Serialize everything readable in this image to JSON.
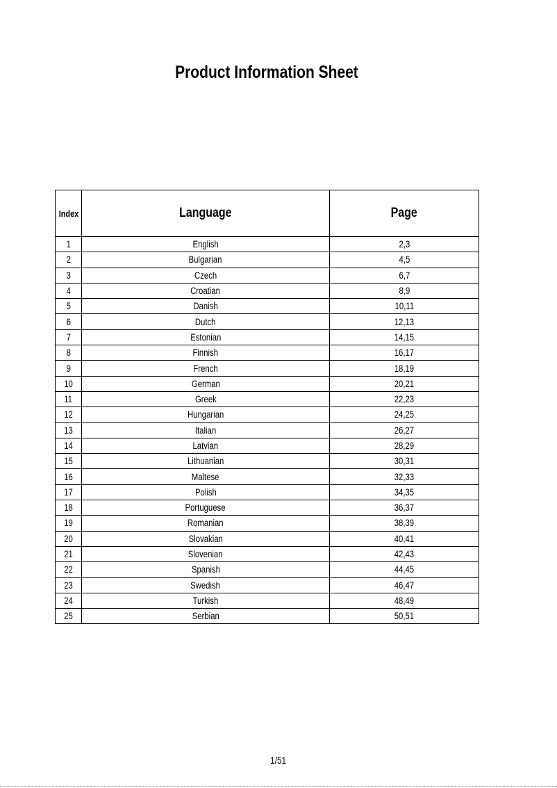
{
  "title": "Product Information Sheet",
  "table": {
    "headers": {
      "index": "Index",
      "language": "Language",
      "page": "Page"
    },
    "rows": [
      {
        "index": "1",
        "language": "English",
        "page": "2,3"
      },
      {
        "index": "2",
        "language": "Bulgarian",
        "page": "4,5"
      },
      {
        "index": "3",
        "language": "Czech",
        "page": "6,7"
      },
      {
        "index": "4",
        "language": "Croatian",
        "page": "8,9"
      },
      {
        "index": "5",
        "language": "Danish",
        "page": "10,11"
      },
      {
        "index": "6",
        "language": "Dutch",
        "page": "12,13"
      },
      {
        "index": "7",
        "language": "Estonian",
        "page": "14,15"
      },
      {
        "index": "8",
        "language": "Finnish",
        "page": "16,17"
      },
      {
        "index": "9",
        "language": "French",
        "page": "18,19"
      },
      {
        "index": "10",
        "language": "German",
        "page": "20,21"
      },
      {
        "index": "11",
        "language": "Greek",
        "page": "22,23"
      },
      {
        "index": "12",
        "language": "Hungarian",
        "page": "24,25"
      },
      {
        "index": "13",
        "language": "Italian",
        "page": "26,27"
      },
      {
        "index": "14",
        "language": "Latvian",
        "page": "28,29"
      },
      {
        "index": "15",
        "language": "Lithuanian",
        "page": "30,31"
      },
      {
        "index": "16",
        "language": "Maltese",
        "page": "32,33"
      },
      {
        "index": "17",
        "language": "Polish",
        "page": "34,35"
      },
      {
        "index": "18",
        "language": "Portuguese",
        "page": "36,37"
      },
      {
        "index": "19",
        "language": "Romanian",
        "page": "38,39"
      },
      {
        "index": "20",
        "language": "Slovakian",
        "page": "40,41"
      },
      {
        "index": "21",
        "language": "Slovenian",
        "page": "42,43"
      },
      {
        "index": "22",
        "language": "Spanish",
        "page": "44,45"
      },
      {
        "index": "23",
        "language": "Swedish",
        "page": "46,47"
      },
      {
        "index": "24",
        "language": "Turkish",
        "page": "48,49"
      },
      {
        "index": "25",
        "language": "Serbian",
        "page": "50,51"
      }
    ]
  },
  "footer": {
    "page_number": "1/51"
  }
}
